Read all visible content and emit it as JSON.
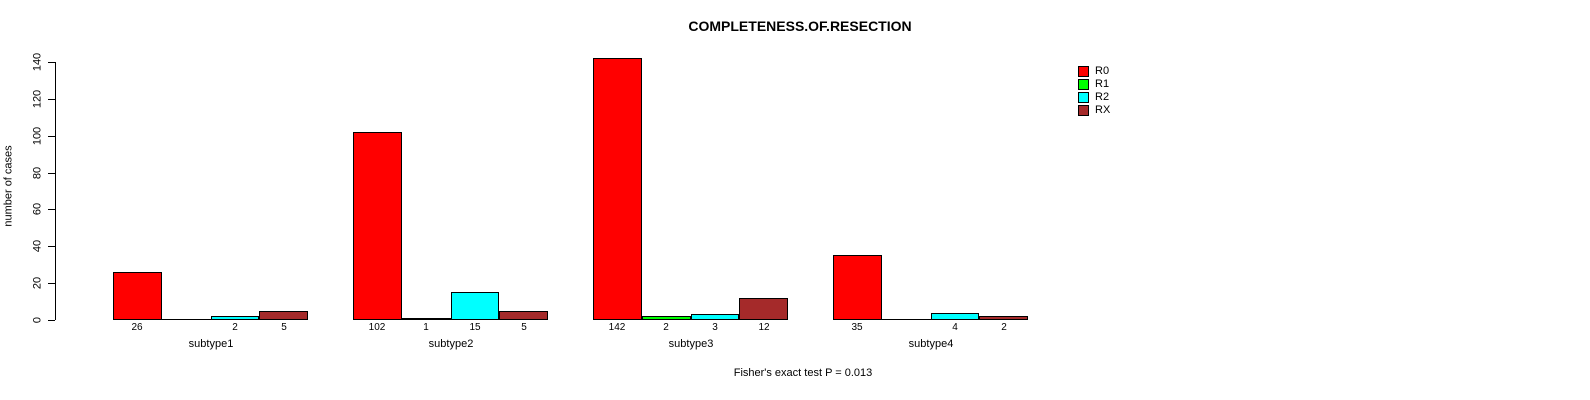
{
  "chart_data": {
    "type": "bar",
    "title": "COMPLETENESS.OF.RESECTION",
    "ylabel": "number of cases",
    "xlabel": "",
    "ylim": [
      0,
      140
    ],
    "yticks": [
      0,
      20,
      40,
      60,
      80,
      100,
      120,
      140
    ],
    "grid": false,
    "legend_position": "top-right",
    "categories": [
      "subtype1",
      "subtype2",
      "subtype3",
      "subtype4"
    ],
    "series": [
      {
        "name": "R0",
        "color": "#FF0000",
        "values": [
          26,
          102,
          142,
          35
        ]
      },
      {
        "name": "R1",
        "color": "#00FF00",
        "values": [
          0,
          1,
          2,
          0
        ]
      },
      {
        "name": "R2",
        "color": "#00FFFF",
        "values": [
          2,
          15,
          3,
          4
        ]
      },
      {
        "name": "RX",
        "color": "#A52A2A",
        "values": [
          5,
          5,
          12,
          2
        ]
      }
    ],
    "bar_labels": [
      [
        "26",
        "",
        "2",
        "5"
      ],
      [
        "102",
        "1",
        "15",
        "5"
      ],
      [
        "142",
        "2",
        "3",
        "12"
      ],
      [
        "35",
        "",
        "4",
        "2"
      ]
    ],
    "annotation": "Fisher's exact test P = 0.013",
    "bar_edge_color": "#000000",
    "background_color": "#FFFFFF"
  }
}
